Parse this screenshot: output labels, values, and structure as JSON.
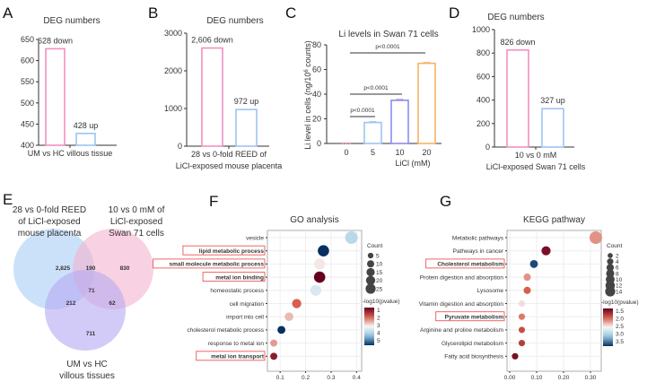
{
  "chart_data": [
    {
      "panel": "A",
      "type": "bar",
      "title": "DEG numbers",
      "categories": [
        "down",
        "up"
      ],
      "category_label": "UM vs HC villous tissue",
      "values": [
        628,
        428
      ],
      "data_labels": [
        "628 down",
        "428 up"
      ],
      "colors": [
        "#f48fbf",
        "#9cc4f5"
      ],
      "ylim": [
        400,
        650
      ],
      "yticks": [
        400,
        450,
        500,
        550,
        600,
        650
      ]
    },
    {
      "panel": "B",
      "type": "bar",
      "title": "DEG numbers",
      "categories": [
        "down",
        "up"
      ],
      "category_label": [
        "28 vs 0-fold REED of",
        "LiCl-exposed mouse placenta"
      ],
      "values": [
        2606,
        972
      ],
      "data_labels": [
        "2,606 down",
        "972 up"
      ],
      "colors": [
        "#f48fbf",
        "#9cc4f5"
      ],
      "ylim": [
        0,
        3000
      ],
      "yticks": [
        0,
        1000,
        2000,
        3000
      ]
    },
    {
      "panel": "C",
      "type": "bar",
      "title": "Li levels in Swan 71 cells",
      "categories": [
        "0",
        "5",
        "10",
        "20"
      ],
      "xlabel": "LiCl (mM)",
      "ylabel": "Li level in cells (ng/10^6 counts)",
      "values": [
        0.3,
        17,
        35,
        65
      ],
      "colors": [
        "#f48fbf",
        "#9cc4f5",
        "#8a8cf0",
        "#f7b267"
      ],
      "ylim": [
        0,
        80
      ],
      "yticks": [
        0,
        20,
        40,
        60,
        80
      ],
      "comparisons": [
        {
          "from": "0",
          "to": "5",
          "label": "p<0.0001"
        },
        {
          "from": "0",
          "to": "10",
          "label": "p<0.0001"
        },
        {
          "from": "0",
          "to": "20",
          "label": "p<0.0001"
        }
      ]
    },
    {
      "panel": "D",
      "type": "bar",
      "title": "DEG numbers",
      "categories": [
        "down",
        "up"
      ],
      "category_label": [
        "10 vs 0 mM",
        "LiCl-exposed Swan 71 cells"
      ],
      "values": [
        826,
        327
      ],
      "data_labels": [
        "826 down",
        "327 up"
      ],
      "colors": [
        "#f48fbf",
        "#9cc4f5"
      ],
      "ylim": [
        0,
        1000
      ],
      "yticks": [
        0,
        200,
        400,
        600,
        800,
        1000
      ]
    },
    {
      "panel": "E",
      "type": "venn",
      "sets": [
        {
          "label": [
            "28 vs 0-fold REED",
            "of LiCl-exposed",
            "mouse placenta"
          ],
          "color": "#a9cdf7"
        },
        {
          "label": [
            "10 vs 0 mM of",
            "LiCl-exposed",
            "Swan 71 cells"
          ],
          "color": "#f4b3cf"
        },
        {
          "label": [
            "UM vs HC",
            "villous tissues"
          ],
          "color": "#b6a9f2"
        }
      ],
      "regions": {
        "A_only": "2,825",
        "AB": "190",
        "B_only": "830",
        "ABC": "71",
        "AC": "212",
        "BC": "62",
        "C_only": "711"
      }
    },
    {
      "panel": "F",
      "type": "scatter",
      "title": "GO analysis",
      "xlabel": "GeneRatio",
      "xlim": [
        0.05,
        0.42
      ],
      "xticks": [
        "0.1",
        "0.2",
        "0.3",
        "0.4"
      ],
      "size_legend_title": "Count",
      "size_legend": [
        5,
        10,
        15,
        20,
        25
      ],
      "color_legend_title": "-log10(pvalue)",
      "color_ticks": [
        "1",
        "2",
        "3",
        "4",
        "5"
      ],
      "color_range": [
        1,
        5
      ],
      "points": [
        {
          "term": "vesicle",
          "ratio": 0.38,
          "count": 25,
          "p": 3.6,
          "highlighted": false
        },
        {
          "term": "lipid metabolic process",
          "ratio": 0.27,
          "count": 19,
          "p": 5.0,
          "highlighted": true
        },
        {
          "term": "small molecule metabolic process",
          "ratio": 0.255,
          "count": 18,
          "p": 2.9,
          "highlighted": true
        },
        {
          "term": "metal ion binding",
          "ratio": 0.255,
          "count": 19,
          "p": 1.0,
          "highlighted": true
        },
        {
          "term": "homeostatic process",
          "ratio": 0.24,
          "count": 17,
          "p": 3.3,
          "highlighted": false
        },
        {
          "term": "cell migration",
          "ratio": 0.165,
          "count": 11,
          "p": 2.0,
          "highlighted": false
        },
        {
          "term": "import into cell",
          "ratio": 0.135,
          "count": 9,
          "p": 2.6,
          "highlighted": false
        },
        {
          "term": "cholesterol metabolic process",
          "ratio": 0.105,
          "count": 7,
          "p": 5.0,
          "highlighted": false
        },
        {
          "term": "response to metal ion",
          "ratio": 0.075,
          "count": 5,
          "p": 2.4,
          "highlighted": false
        },
        {
          "term": "metal ion transport",
          "ratio": 0.075,
          "count": 5,
          "p": 1.3,
          "highlighted": true
        }
      ]
    },
    {
      "panel": "G",
      "type": "scatter",
      "title": "KEGG pathway",
      "xlabel": "GeneRatio",
      "xlim": [
        -0.01,
        0.34
      ],
      "xticks": [
        "0.00",
        "0.10",
        "0.20",
        "0.30"
      ],
      "size_legend_title": "Count",
      "size_legend": [
        2,
        4,
        6,
        8,
        10,
        12,
        14
      ],
      "color_legend_title": "-log10(pvalue)",
      "color_ticks": [
        "1.5",
        "2.0",
        "2.5",
        "3.0",
        "3.5"
      ],
      "color_range": [
        1.3,
        3.7
      ],
      "points": [
        {
          "term": "Metabolic pathways",
          "ratio": 0.32,
          "count": 14,
          "p": 2.1,
          "highlighted": false
        },
        {
          "term": "Pathways in cancer",
          "ratio": 0.135,
          "count": 6,
          "p": 1.4,
          "highlighted": false
        },
        {
          "term": "Cholesterol metabolism",
          "ratio": 0.09,
          "count": 4,
          "p": 3.6,
          "highlighted": true
        },
        {
          "term": "Protein digestion and absorption",
          "ratio": 0.065,
          "count": 3,
          "p": 2.1,
          "highlighted": false
        },
        {
          "term": "Lysosome",
          "ratio": 0.065,
          "count": 3,
          "p": 1.9,
          "highlighted": false
        },
        {
          "term": "Vitamin digestion and absorption",
          "ratio": 0.045,
          "count": 2,
          "p": 2.4,
          "highlighted": false
        },
        {
          "term": "Pyruvate metabolism",
          "ratio": 0.045,
          "count": 2,
          "p": 2.0,
          "highlighted": true
        },
        {
          "term": "Arginine and proline metabolism",
          "ratio": 0.045,
          "count": 2,
          "p": 1.8,
          "highlighted": false
        },
        {
          "term": "Glycerolipid metabolism",
          "ratio": 0.045,
          "count": 2,
          "p": 1.7,
          "highlighted": false
        },
        {
          "term": "Fatty acid biosynthesis",
          "ratio": 0.02,
          "count": 2,
          "p": 1.4,
          "highlighted": false
        }
      ]
    }
  ]
}
